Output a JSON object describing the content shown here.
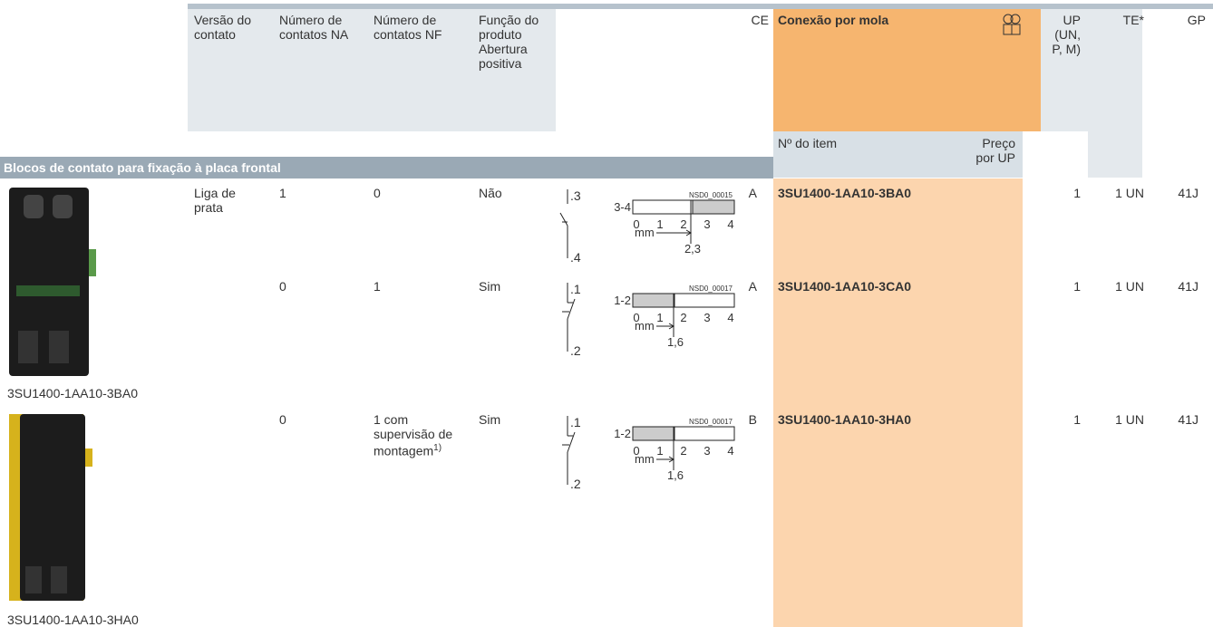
{
  "header": {
    "version": "Versão do contato",
    "no_contacts": "Número de contatos NA",
    "nc_contacts": "Número de contatos NF",
    "function": "Função do produto Abertura positiva",
    "ce": "CE",
    "spring": "Conexão por mola",
    "up": "UP (UN, P, M)",
    "te": "TE*",
    "gp": "GP",
    "item_no": "Nº do item",
    "price": "Preço por UP"
  },
  "section": "Blocos de contato para fixação à placa frontal",
  "rows": [
    {
      "version": "Liga de prata",
      "no": "1",
      "nc": "0",
      "nc_note": null,
      "function": "Não",
      "diagram": {
        "top": ".3",
        "bottom": ".4",
        "range": "3-4",
        "code": "NSD0_00015",
        "scale": [
          "0",
          "1",
          "2",
          "3",
          "4"
        ],
        "unit": "mm",
        "travel": "2,3"
      },
      "ce": "A",
      "item": "3SU1400-1AA10-3BA0",
      "up": "1",
      "te": "1 UN",
      "gp": "41J"
    },
    {
      "version": null,
      "no": "0",
      "nc": "1",
      "nc_note": null,
      "function": "Sim",
      "diagram": {
        "top": ".1",
        "bottom": ".2",
        "range": "1-2",
        "code": "NSD0_00017",
        "scale": [
          "0",
          "1",
          "2",
          "3",
          "4"
        ],
        "unit": "mm",
        "travel": "1,6"
      },
      "ce": "A",
      "item": "3SU1400-1AA10-3CA0",
      "up": "1",
      "te": "1 UN",
      "gp": "41J"
    },
    {
      "version": null,
      "no": "0",
      "nc": "1 com supervisão de montagem",
      "nc_note": "1)",
      "function": "Sim",
      "diagram": {
        "top": ".1",
        "bottom": ".2",
        "range": "1-2",
        "code": "NSD0_00017",
        "scale": [
          "0",
          "1",
          "2",
          "3",
          "4"
        ],
        "unit": "mm",
        "travel": "1,6"
      },
      "ce": "B",
      "item": "3SU1400-1AA10-3HA0",
      "up": "1",
      "te": "1 UN",
      "gp": "41J"
    }
  ],
  "images": [
    {
      "caption": "3SU1400-1AA10-3BA0"
    },
    {
      "caption": "3SU1400-1AA10-3HA0"
    }
  ]
}
